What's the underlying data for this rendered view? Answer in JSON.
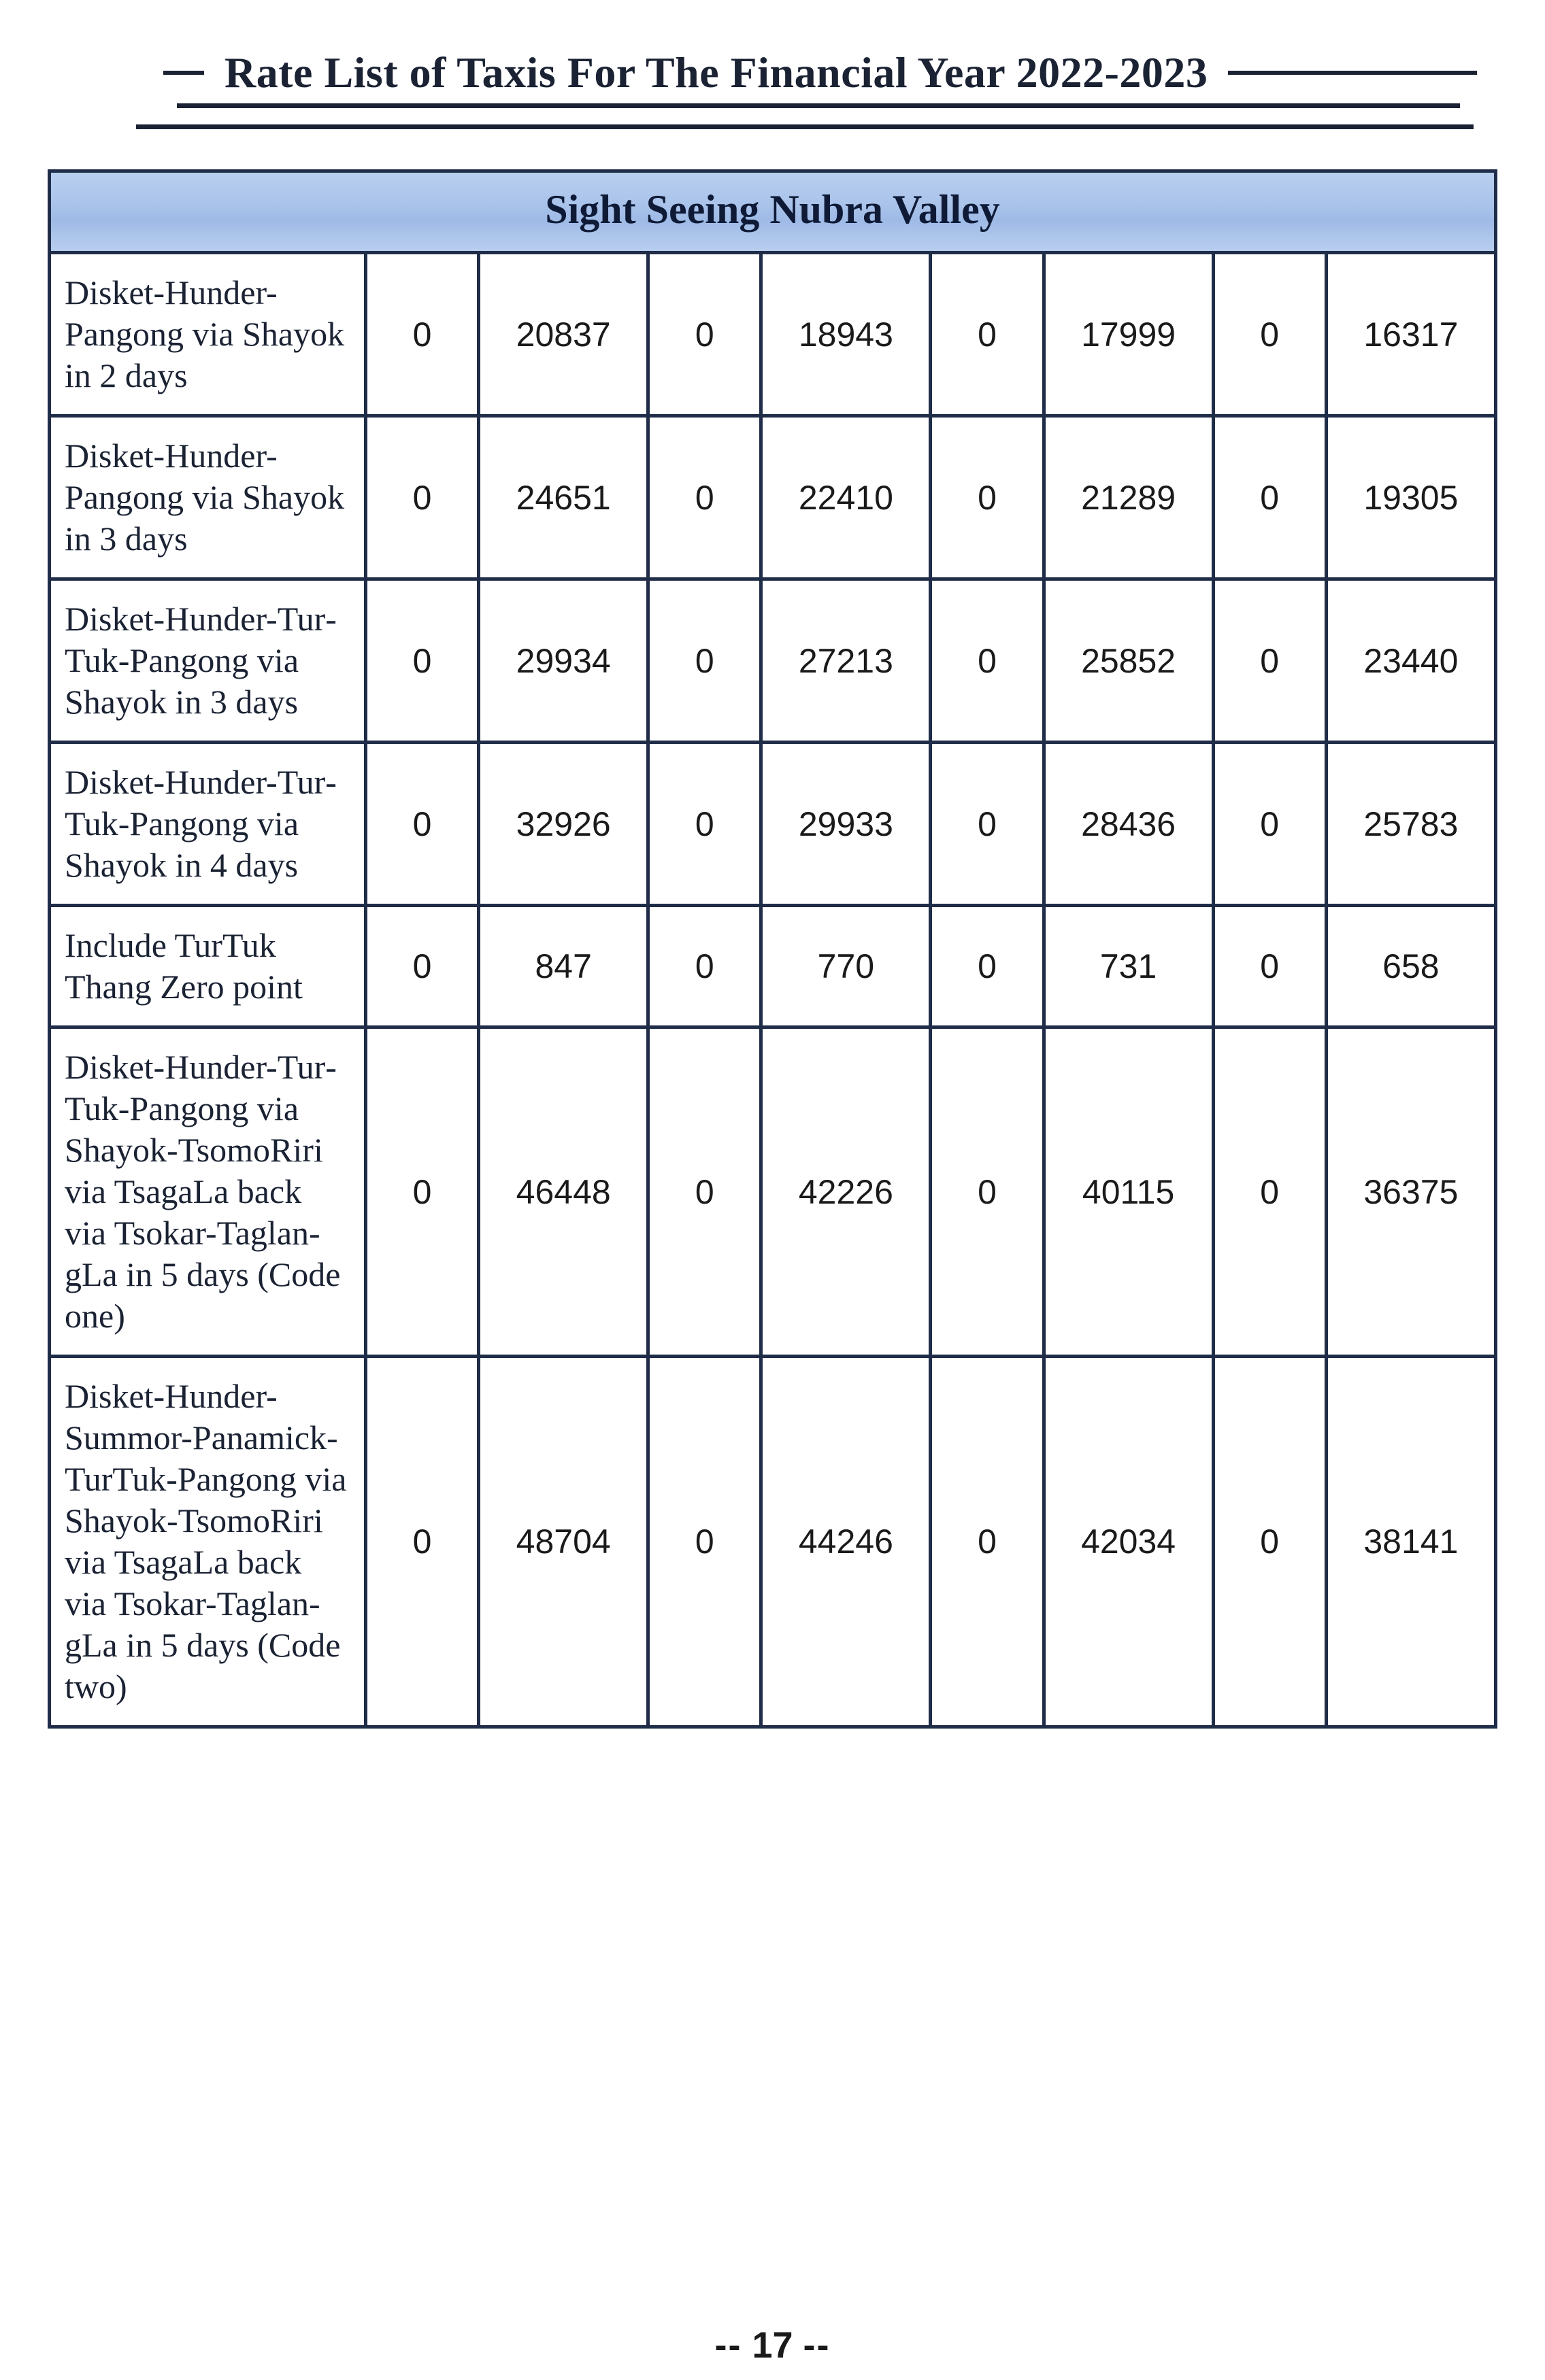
{
  "header": {
    "title": "Rate List of Taxis For The Financial Year 2022-2023"
  },
  "table": {
    "section_title": "Sight Seeing Nubra Valley",
    "header_bg_gradient": [
      "#b9cfef",
      "#9ebae6"
    ],
    "border_color": "#202d48",
    "text_color": "#1a2233",
    "column_layout": [
      "route",
      "zero",
      "rate",
      "zero",
      "rate",
      "zero",
      "rate",
      "zero",
      "rate"
    ],
    "rows": [
      {
        "route": "Disket-Hun­der-Pangong via Shayok in 2 days",
        "cells": [
          "0",
          "20837",
          "0",
          "18943",
          "0",
          "17999",
          "0",
          "16317"
        ]
      },
      {
        "route": "Disket-Hun­der-Pangong via Shayok in 3 days",
        "cells": [
          "0",
          "24651",
          "0",
          "22410",
          "0",
          "21289",
          "0",
          "19305"
        ]
      },
      {
        "route": "Disket-Hun­der-Tur­Tuk-Pangong via Shayok in 3 days",
        "cells": [
          "0",
          "29934",
          "0",
          "27213",
          "0",
          "25852",
          "0",
          "23440"
        ]
      },
      {
        "route": "Disket-Hun­der-Tur­Tuk-Pangong via Shayok in 4 days",
        "cells": [
          "0",
          "32926",
          "0",
          "29933",
          "0",
          "28436",
          "0",
          "25783"
        ]
      },
      {
        "route": "Include TurTuk Thang Zero point",
        "cells": [
          "0",
          "847",
          "0",
          "770",
          "0",
          "731",
          "0",
          "658"
        ]
      },
      {
        "route": "Disket-Hun­der-Tur­Tuk-Pangong via Shayok-Tso­moRiri via Tsa­gaLa back via Tsokar-Taglan­gLa in 5 days (Code one)",
        "cells": [
          "0",
          "46448",
          "0",
          "42226",
          "0",
          "40115",
          "0",
          "36375"
        ]
      },
      {
        "route": "Disket-Hun­der-Summor-Panamick-Tur­Tuk-Pangong via Shayok-Tso­moRiri via Tsa­gaLa back via Tsokar-Taglan­gLa in 5 days (Code two)",
        "cells": [
          "0",
          "48704",
          "0",
          "44246",
          "0",
          "42034",
          "0",
          "38141"
        ]
      }
    ]
  },
  "page_number": {
    "prefix": "--",
    "value": "17",
    "suffix": "--"
  }
}
